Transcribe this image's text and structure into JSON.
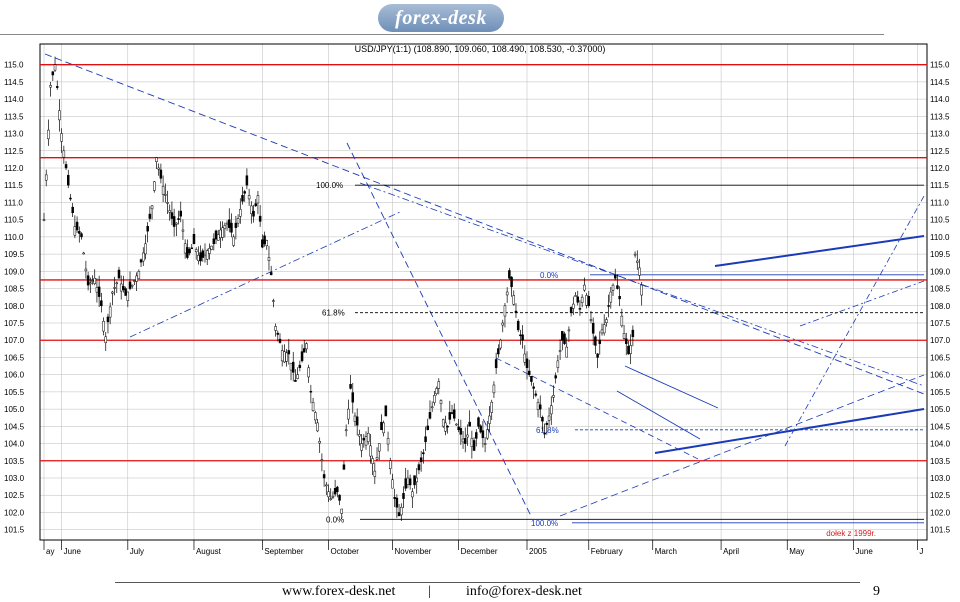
{
  "logo": "forex-desk",
  "chart_data": {
    "type": "candlestick",
    "title": "USD/JPY(1:1) (108.890, 109.060, 108.490, 108.530, -0.37000)",
    "ylim": [
      101.2,
      115.6
    ],
    "y_ticks": [
      "101.5",
      "102.0",
      "102.5",
      "103.0",
      "103.5",
      "104.0",
      "104.5",
      "105.0",
      "105.5",
      "106.0",
      "106.5",
      "107.0",
      "107.5",
      "108.0",
      "108.5",
      "109.0",
      "109.5",
      "110.0",
      "110.5",
      "111.0",
      "111.5",
      "112.0",
      "112.5",
      "113.0",
      "113.5",
      "114.0",
      "114.5",
      "115.0"
    ],
    "x_labels": [
      {
        "label": "ay",
        "x": 0
      },
      {
        "label": "June",
        "x": 8
      },
      {
        "label": "July",
        "x": 38
      },
      {
        "label": "August",
        "x": 68
      },
      {
        "label": "September",
        "x": 99
      },
      {
        "label": "October",
        "x": 129
      },
      {
        "label": "November",
        "x": 158
      },
      {
        "label": "December",
        "x": 188
      },
      {
        "label": "2005",
        "x": 219
      },
      {
        "label": "February",
        "x": 247
      },
      {
        "label": "March",
        "x": 276
      },
      {
        "label": "April",
        "x": 307
      },
      {
        "label": "May",
        "x": 337
      },
      {
        "label": "June",
        "x": 367
      },
      {
        "label": "J",
        "x": 396
      }
    ],
    "x_range": [
      0,
      399
    ],
    "price_path": [
      [
        0,
        110.5
      ],
      [
        3,
        114.4
      ],
      [
        5,
        115.0
      ],
      [
        8,
        113.0
      ],
      [
        11,
        111.5
      ],
      [
        14,
        110.3
      ],
      [
        17,
        110.0
      ],
      [
        20,
        108.6
      ],
      [
        23,
        108.8
      ],
      [
        26,
        108.0
      ],
      [
        28,
        107.1
      ],
      [
        31,
        108.4
      ],
      [
        34,
        108.8
      ],
      [
        37,
        108.3
      ],
      [
        40,
        108.6
      ],
      [
        43,
        109.0
      ],
      [
        46,
        109.8
      ],
      [
        49,
        110.9
      ],
      [
        51,
        112.3
      ],
      [
        53,
        111.7
      ],
      [
        56,
        111.0
      ],
      [
        59,
        110.3
      ],
      [
        62,
        110.6
      ],
      [
        65,
        109.4
      ],
      [
        68,
        109.8
      ],
      [
        71,
        109.3
      ],
      [
        74,
        109.6
      ],
      [
        77,
        109.8
      ],
      [
        80,
        110.2
      ],
      [
        83,
        110.4
      ],
      [
        86,
        110.0
      ],
      [
        89,
        110.8
      ],
      [
        92,
        111.5
      ],
      [
        95,
        110.6
      ],
      [
        97,
        111.2
      ],
      [
        99,
        109.7
      ],
      [
        101,
        109.9
      ],
      [
        103,
        108.9
      ],
      [
        105,
        107.4
      ],
      [
        108,
        106.7
      ],
      [
        111,
        106.6
      ],
      [
        114,
        105.8
      ],
      [
        117,
        106.4
      ],
      [
        119,
        106.9
      ],
      [
        121,
        105.5
      ],
      [
        124,
        104.6
      ],
      [
        127,
        103.0
      ],
      [
        130,
        102.4
      ],
      [
        133,
        102.6
      ],
      [
        135,
        102.1
      ],
      [
        137,
        104.4
      ],
      [
        139,
        105.6
      ],
      [
        141,
        104.8
      ],
      [
        144,
        104.0
      ],
      [
        147,
        104.3
      ],
      [
        150,
        103.2
      ],
      [
        153,
        104.4
      ],
      [
        155,
        104.8
      ],
      [
        157,
        103.5
      ],
      [
        159,
        102.4
      ],
      [
        161,
        101.9
      ],
      [
        163,
        102.4
      ],
      [
        165,
        103.0
      ],
      [
        167,
        102.6
      ],
      [
        169,
        103.0
      ],
      [
        172,
        103.7
      ],
      [
        174,
        104.4
      ],
      [
        177,
        105.4
      ],
      [
        179,
        105.8
      ],
      [
        181,
        104.7
      ],
      [
        183,
        104.5
      ],
      [
        185,
        104.9
      ],
      [
        188,
        104.4
      ],
      [
        191,
        104.0
      ],
      [
        193,
        104.5
      ],
      [
        195,
        103.8
      ],
      [
        197,
        104.5
      ],
      [
        200,
        104.0
      ],
      [
        203,
        105.2
      ],
      [
        205,
        106.2
      ],
      [
        207,
        107.0
      ],
      [
        209,
        108.0
      ],
      [
        211,
        108.8
      ],
      [
        213,
        108.3
      ],
      [
        215,
        107.3
      ],
      [
        217,
        107.0
      ],
      [
        219,
        106.2
      ],
      [
        221,
        105.8
      ],
      [
        223,
        105.4
      ],
      [
        225,
        105.0
      ],
      [
        227,
        104.3
      ],
      [
        229,
        104.8
      ],
      [
        231,
        105.4
      ],
      [
        233,
        106.4
      ],
      [
        235,
        107.0
      ],
      [
        237,
        106.8
      ],
      [
        239,
        107.8
      ],
      [
        241,
        108.3
      ],
      [
        243,
        107.9
      ],
      [
        245,
        108.6
      ],
      [
        247,
        108.0
      ],
      [
        249,
        107.2
      ],
      [
        251,
        106.5
      ],
      [
        253,
        107.3
      ],
      [
        255,
        107.6
      ],
      [
        257,
        108.4
      ],
      [
        259,
        108.8
      ],
      [
        261,
        108.2
      ],
      [
        263,
        107.2
      ],
      [
        265,
        106.6
      ],
      [
        267,
        107.1
      ],
      [
        268,
        109.5
      ],
      [
        270,
        109.1
      ],
      [
        271,
        108.6
      ]
    ],
    "horizontal_levels": [
      115.0,
      112.3,
      108.75,
      107.0,
      103.5
    ],
    "fibonacci": [
      {
        "label": "100.0%",
        "value": 111.5
      },
      {
        "label": "61.8%",
        "value": 107.8
      },
      {
        "label": "0.0%",
        "value": 101.8
      },
      {
        "label": "0.0%",
        "value": 108.9
      },
      {
        "label": "61.8%",
        "value": 104.4
      },
      {
        "label": "100.0%",
        "value": 101.7
      }
    ],
    "annotation": "dołek z 1999r."
  },
  "footer": {
    "website": "www.forex-desk.net",
    "separator": "|",
    "email": "info@forex-desk.net",
    "page": "9"
  },
  "colors": {
    "price": "#000000",
    "level": "#e01010",
    "trend": "#1a3ab8",
    "fib": "#000000",
    "grid": "#bbbbbb",
    "annotation": "#d42020"
  }
}
